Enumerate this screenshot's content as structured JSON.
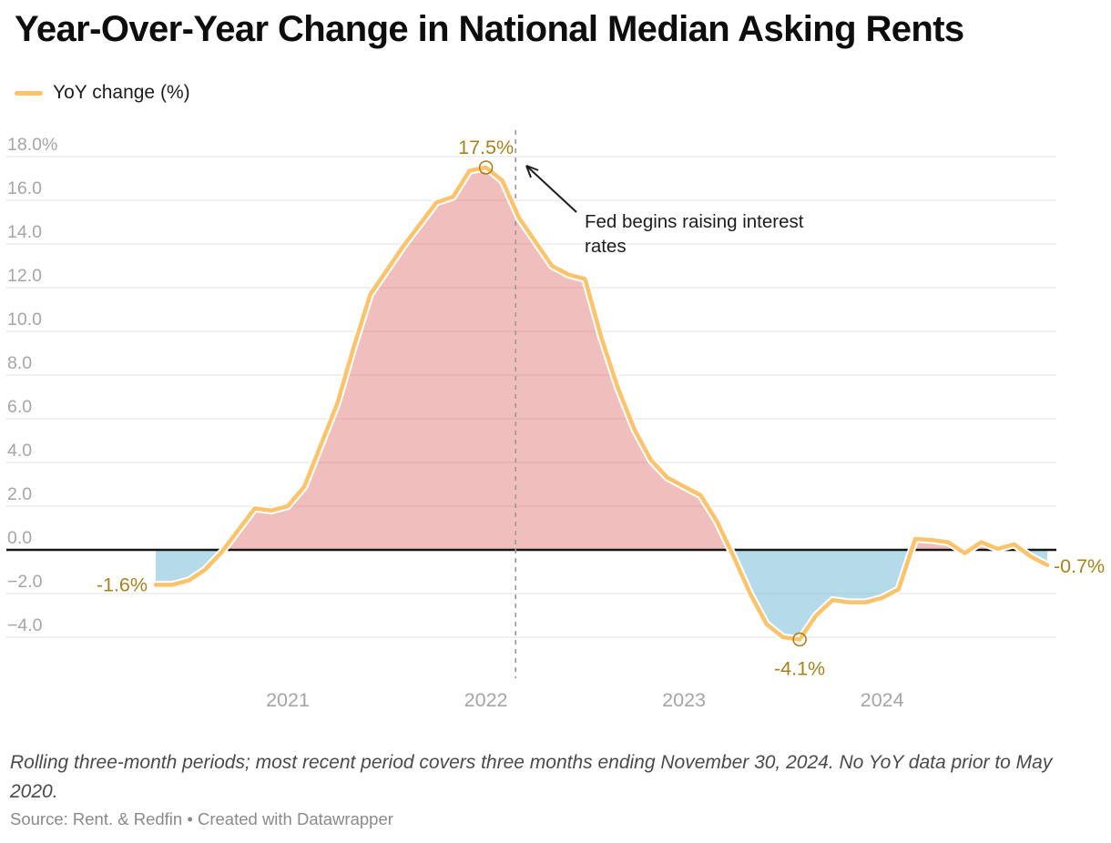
{
  "header": {
    "title": "Year-Over-Year Change in National Median Asking Rents"
  },
  "legend": {
    "label": "YoY change (%)"
  },
  "chart_data": {
    "type": "area",
    "title": "Year-Over-Year Change in National Median Asking Rents",
    "series_name": "YoY change (%)",
    "unit": "%",
    "x": [
      "2020-05",
      "2020-06",
      "2020-07",
      "2020-08",
      "2020-09",
      "2020-10",
      "2020-11",
      "2020-12",
      "2021-01",
      "2021-02",
      "2021-03",
      "2021-04",
      "2021-05",
      "2021-06",
      "2021-07",
      "2021-08",
      "2021-09",
      "2021-10",
      "2021-11",
      "2021-12",
      "2022-01",
      "2022-02",
      "2022-03",
      "2022-04",
      "2022-05",
      "2022-06",
      "2022-07",
      "2022-08",
      "2022-09",
      "2022-10",
      "2022-11",
      "2022-12",
      "2023-01",
      "2023-02",
      "2023-03",
      "2023-04",
      "2023-05",
      "2023-06",
      "2023-07",
      "2023-08",
      "2023-09",
      "2023-10",
      "2023-11",
      "2023-12",
      "2024-01",
      "2024-02",
      "2024-03",
      "2024-04",
      "2024-05",
      "2024-06",
      "2024-07",
      "2024-08",
      "2024-09",
      "2024-10",
      "2024-11"
    ],
    "values": [
      -1.6,
      -1.6,
      -1.4,
      -0.9,
      -0.1,
      0.9,
      1.9,
      1.8,
      2.0,
      2.9,
      4.8,
      6.7,
      9.3,
      11.7,
      12.8,
      13.9,
      14.9,
      15.9,
      16.15,
      17.35,
      17.5,
      16.9,
      15.2,
      14.1,
      13.0,
      12.6,
      12.4,
      9.7,
      7.4,
      5.5,
      4.1,
      3.3,
      2.9,
      2.5,
      1.3,
      -0.3,
      -2.0,
      -3.4,
      -4.0,
      -4.1,
      -3.0,
      -2.3,
      -2.4,
      -2.4,
      -2.2,
      -1.8,
      0.5,
      0.45,
      0.35,
      -0.15,
      0.35,
      0.05,
      0.25,
      -0.3,
      -0.7
    ],
    "ylim": [
      -5.6,
      18.4
    ],
    "yticks": [
      18,
      16,
      14,
      12,
      10,
      8,
      6,
      4,
      2,
      0,
      -2,
      -4
    ],
    "ytick_top_label": "18.0%",
    "xticks": [
      {
        "label": "2021",
        "month_index": 8
      },
      {
        "label": "2022",
        "month_index": 20
      },
      {
        "label": "2023",
        "month_index": 32
      },
      {
        "label": "2024",
        "month_index": 44
      }
    ],
    "grid": true,
    "legend_position": "top-left",
    "annotations": {
      "first_point_label": "-1.6%",
      "peak_label": "17.5%",
      "trough_label": "-4.1%",
      "last_point_label": "-0.7%",
      "event": {
        "text_lines": [
          "Fed begins raising interest",
          "rates"
        ],
        "month_index": 21.8
      }
    }
  },
  "colors": {
    "line": "#fbc36c",
    "line_casing": "#ffffff",
    "area_positive": "rgba(222,100,100,0.42)",
    "area_negative": "rgba(120,190,218,0.55)",
    "annotation_gold": "#a7821c",
    "grid": "#e6e6e6",
    "zero_line": "#151515",
    "axis_text": "#a5a5a5",
    "event_dash": "#9a9a9a",
    "event_text": "#1d1d1d"
  },
  "footer": {
    "notes": "Rolling three-month periods; most recent period covers three months ending November 30, 2024. No YoY data prior to May 2020.",
    "source_text": "Source: Rent. & Redfin",
    "separator": " • ",
    "credit_text": "Created with Datawrapper"
  }
}
